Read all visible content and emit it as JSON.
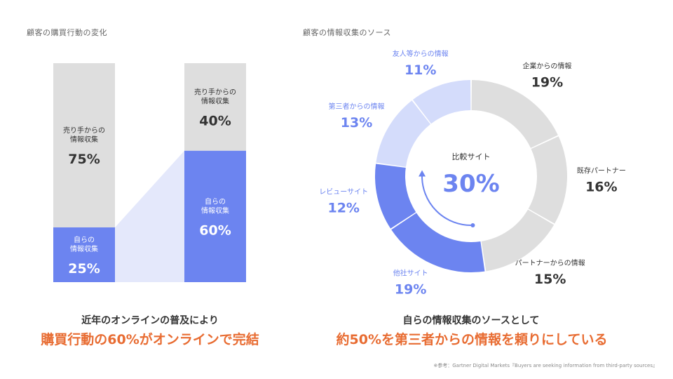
{
  "left_title": "顧客の購買行動の変化",
  "right_title": "顧客の情報収集のソース",
  "left_caption": {
    "line1": "近年のオンラインの普及により",
    "line2": "購買行動の60%がオンラインで完結"
  },
  "right_caption": {
    "line1": "自らの情報収集のソースとして",
    "line2": "約50%を第三者からの情報を頼りにしている"
  },
  "footnote": "※参考：Gartner Digital Markets『Buyers are seeking information from third-party sources』",
  "colors": {
    "self": "#6c84f0",
    "seller": "#dedede",
    "connector": "#e4e8fb",
    "donut_light_blue": "#d4dcfb",
    "donut_gray": "#dedede",
    "blue_text": "#6c84f0",
    "dark_text": "#333333",
    "accent_orange": "#e86c32"
  },
  "chart_data": [
    {
      "type": "bar",
      "stacked": true,
      "title": "顧客の購買行動の変化",
      "ylim": [
        0,
        100
      ],
      "bars": [
        {
          "segments": [
            {
              "label_lines": [
                "売り手からの",
                "情報収集"
              ],
              "value": 75,
              "value_text": "75%",
              "color": "#dedede",
              "text_color": "#333333"
            },
            {
              "label_lines": [
                "自らの",
                "情報収集"
              ],
              "value": 25,
              "value_text": "25%",
              "color": "#6c84f0",
              "text_color": "#ffffff"
            }
          ]
        },
        {
          "segments": [
            {
              "label_lines": [
                "売り手からの",
                "情報収集"
              ],
              "value": 40,
              "value_text": "40%",
              "color": "#dedede",
              "text_color": "#333333"
            },
            {
              "label_lines": [
                "自らの",
                "情報収集"
              ],
              "value": 60,
              "value_text": "60%",
              "color": "#6c84f0",
              "text_color": "#ffffff"
            }
          ]
        }
      ]
    },
    {
      "type": "pie",
      "donut": true,
      "title": "顧客の情報収集のソース",
      "center": {
        "label": "比較サイト",
        "value": 30,
        "value_text": "30%"
      },
      "slices": [
        {
          "label": "企業からの情報",
          "value": 19,
          "value_text": "19%",
          "color": "#dedede",
          "text_color": "#333333"
        },
        {
          "label": "既存パートナー",
          "value": 16,
          "value_text": "16%",
          "color": "#dedede",
          "text_color": "#333333"
        },
        {
          "label": "パートナーからの情報",
          "value": 15,
          "value_text": "15%",
          "color": "#dedede",
          "text_color": "#333333"
        },
        {
          "label": "他社サイト",
          "value": 19,
          "value_text": "19%",
          "color": "#6c84f0",
          "text_color": "#6c84f0"
        },
        {
          "label": "レビューサイト",
          "value": 12,
          "value_text": "12%",
          "color": "#6c84f0",
          "text_color": "#6c84f0"
        },
        {
          "label": "第三者からの情報",
          "value": 13,
          "value_text": "13%",
          "color": "#d4dcfb",
          "text_color": "#6c84f0"
        },
        {
          "label": "友人等からの情報",
          "value": 11,
          "value_text": "11%",
          "color": "#d4dcfb",
          "text_color": "#6c84f0"
        }
      ]
    }
  ]
}
